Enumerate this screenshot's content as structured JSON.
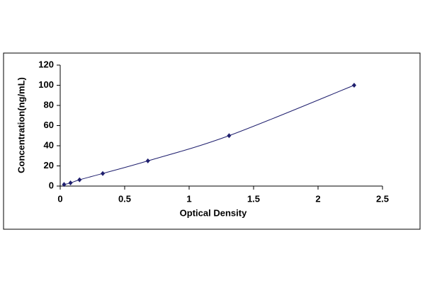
{
  "chart_data": {
    "type": "scatter",
    "x_label": "Optical Density",
    "y_label": "Concentration(ng/mL)",
    "series": [
      {
        "name": null,
        "color": "#1f1f6e",
        "x": [
          0.03,
          0.08,
          0.15,
          0.33,
          0.68,
          1.31,
          2.28
        ],
        "values": [
          1.56,
          3.12,
          6.25,
          12.5,
          25,
          50,
          100
        ]
      }
    ],
    "xlim": [
      0,
      2.5
    ],
    "xticks": [
      0,
      0.5,
      1,
      1.5,
      2,
      2.5
    ],
    "ylim": [
      0,
      120
    ],
    "yticks": [
      0,
      20,
      40,
      60,
      80,
      100,
      120
    ],
    "grid": false,
    "line": true
  }
}
